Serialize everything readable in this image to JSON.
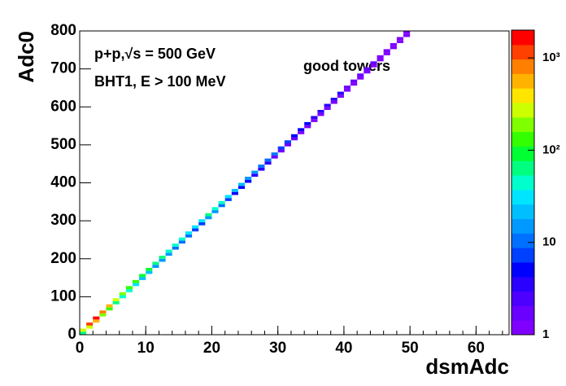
{
  "chart_data": {
    "type": "heatmap",
    "title_lines": [
      "p+p,√s = 500 GeV",
      "BHT1, E > 100 MeV"
    ],
    "annotation": "good towers",
    "x_label": "dsmAdc",
    "y_label": "Adc0",
    "xlim": [
      0,
      65
    ],
    "xticks": [
      0,
      10,
      20,
      30,
      40,
      50,
      60
    ],
    "ylim": [
      0,
      800
    ],
    "yticks": [
      0,
      100,
      200,
      300,
      400,
      500,
      600,
      700,
      800
    ],
    "zlim": [
      1,
      2000
    ],
    "zlog": true,
    "zticks": [
      1,
      10,
      {
        "value": 100,
        "label": "10²"
      },
      {
        "value": 1000,
        "label": "10³"
      }
    ],
    "x_bin_width": 1,
    "y_bin_width": 8,
    "palette": [
      "#7f00ff",
      "#6a00ff",
      "#4c00ff",
      "#2a00ff",
      "#0000ff",
      "#0040ff",
      "#0070ff",
      "#0099ff",
      "#00bfff",
      "#00e5ff",
      "#00ffcc",
      "#00ff80",
      "#00ff33",
      "#33ff00",
      "#80ff00",
      "#ccff00",
      "#ffe500",
      "#ffb300",
      "#ff8000",
      "#ff4000",
      "#ff0000"
    ],
    "x": [
      0,
      0,
      1,
      1,
      2,
      2,
      3,
      3,
      4,
      4,
      5,
      5,
      6,
      6,
      7,
      7,
      8,
      8,
      9,
      9,
      10,
      10,
      11,
      11,
      12,
      12,
      13,
      13,
      14,
      14,
      15,
      15,
      16,
      16,
      17,
      17,
      18,
      18,
      19,
      19,
      20,
      20,
      21,
      21,
      22,
      22,
      23,
      23,
      24,
      24,
      25,
      25,
      26,
      26,
      27,
      27,
      28,
      28,
      29,
      29,
      30,
      30,
      31,
      31,
      32,
      32,
      33,
      33,
      34,
      34,
      35,
      35,
      36,
      36,
      37,
      37,
      38,
      38,
      39,
      39,
      40,
      40,
      41,
      41,
      42,
      42,
      43,
      43,
      44,
      44,
      45,
      45,
      46,
      46,
      47,
      47,
      48,
      48,
      49,
      49
    ],
    "y": [
      0,
      8,
      16,
      24,
      32,
      40,
      48,
      56,
      64,
      72,
      80,
      88,
      96,
      104,
      112,
      120,
      128,
      136,
      144,
      152,
      160,
      168,
      176,
      184,
      192,
      200,
      208,
      216,
      224,
      232,
      240,
      248,
      256,
      264,
      272,
      280,
      288,
      296,
      304,
      312,
      320,
      328,
      336,
      344,
      352,
      360,
      368,
      376,
      384,
      392,
      400,
      408,
      416,
      424,
      432,
      440,
      448,
      456,
      464,
      472,
      480,
      488,
      496,
      504,
      512,
      520,
      528,
      536,
      544,
      552,
      560,
      568,
      576,
      584,
      592,
      600,
      608,
      616,
      624,
      632,
      640,
      648,
      656,
      664,
      672,
      680,
      688,
      696,
      704,
      712,
      720,
      728,
      736,
      744,
      752,
      760,
      768,
      776,
      784,
      792
    ],
    "values": [
      75,
      300,
      250,
      1000,
      500,
      2000,
      225,
      900,
      125,
      500,
      75,
      300,
      50,
      200,
      38,
      150,
      30,
      120,
      25,
      100,
      20,
      80,
      18,
      70,
      15,
      60,
      13,
      50,
      11,
      45,
      10,
      40,
      9,
      35,
      8,
      30,
      8,
      30,
      15,
      60,
      13,
      50,
      10,
      40,
      8,
      30,
      6,
      25,
      5,
      20,
      5,
      18,
      4,
      15,
      3,
      12,
      3,
      10,
      2,
      9,
      2,
      8,
      2,
      7,
      2,
      6,
      1,
      5,
      1,
      5,
      1,
      4,
      1,
      4,
      1,
      3,
      1,
      3,
      1,
      3,
      1,
      2,
      1,
      2,
      1,
      2,
      1,
      2,
      1,
      2,
      1,
      1,
      1,
      1,
      1,
      1,
      1,
      1,
      1,
      1
    ]
  }
}
